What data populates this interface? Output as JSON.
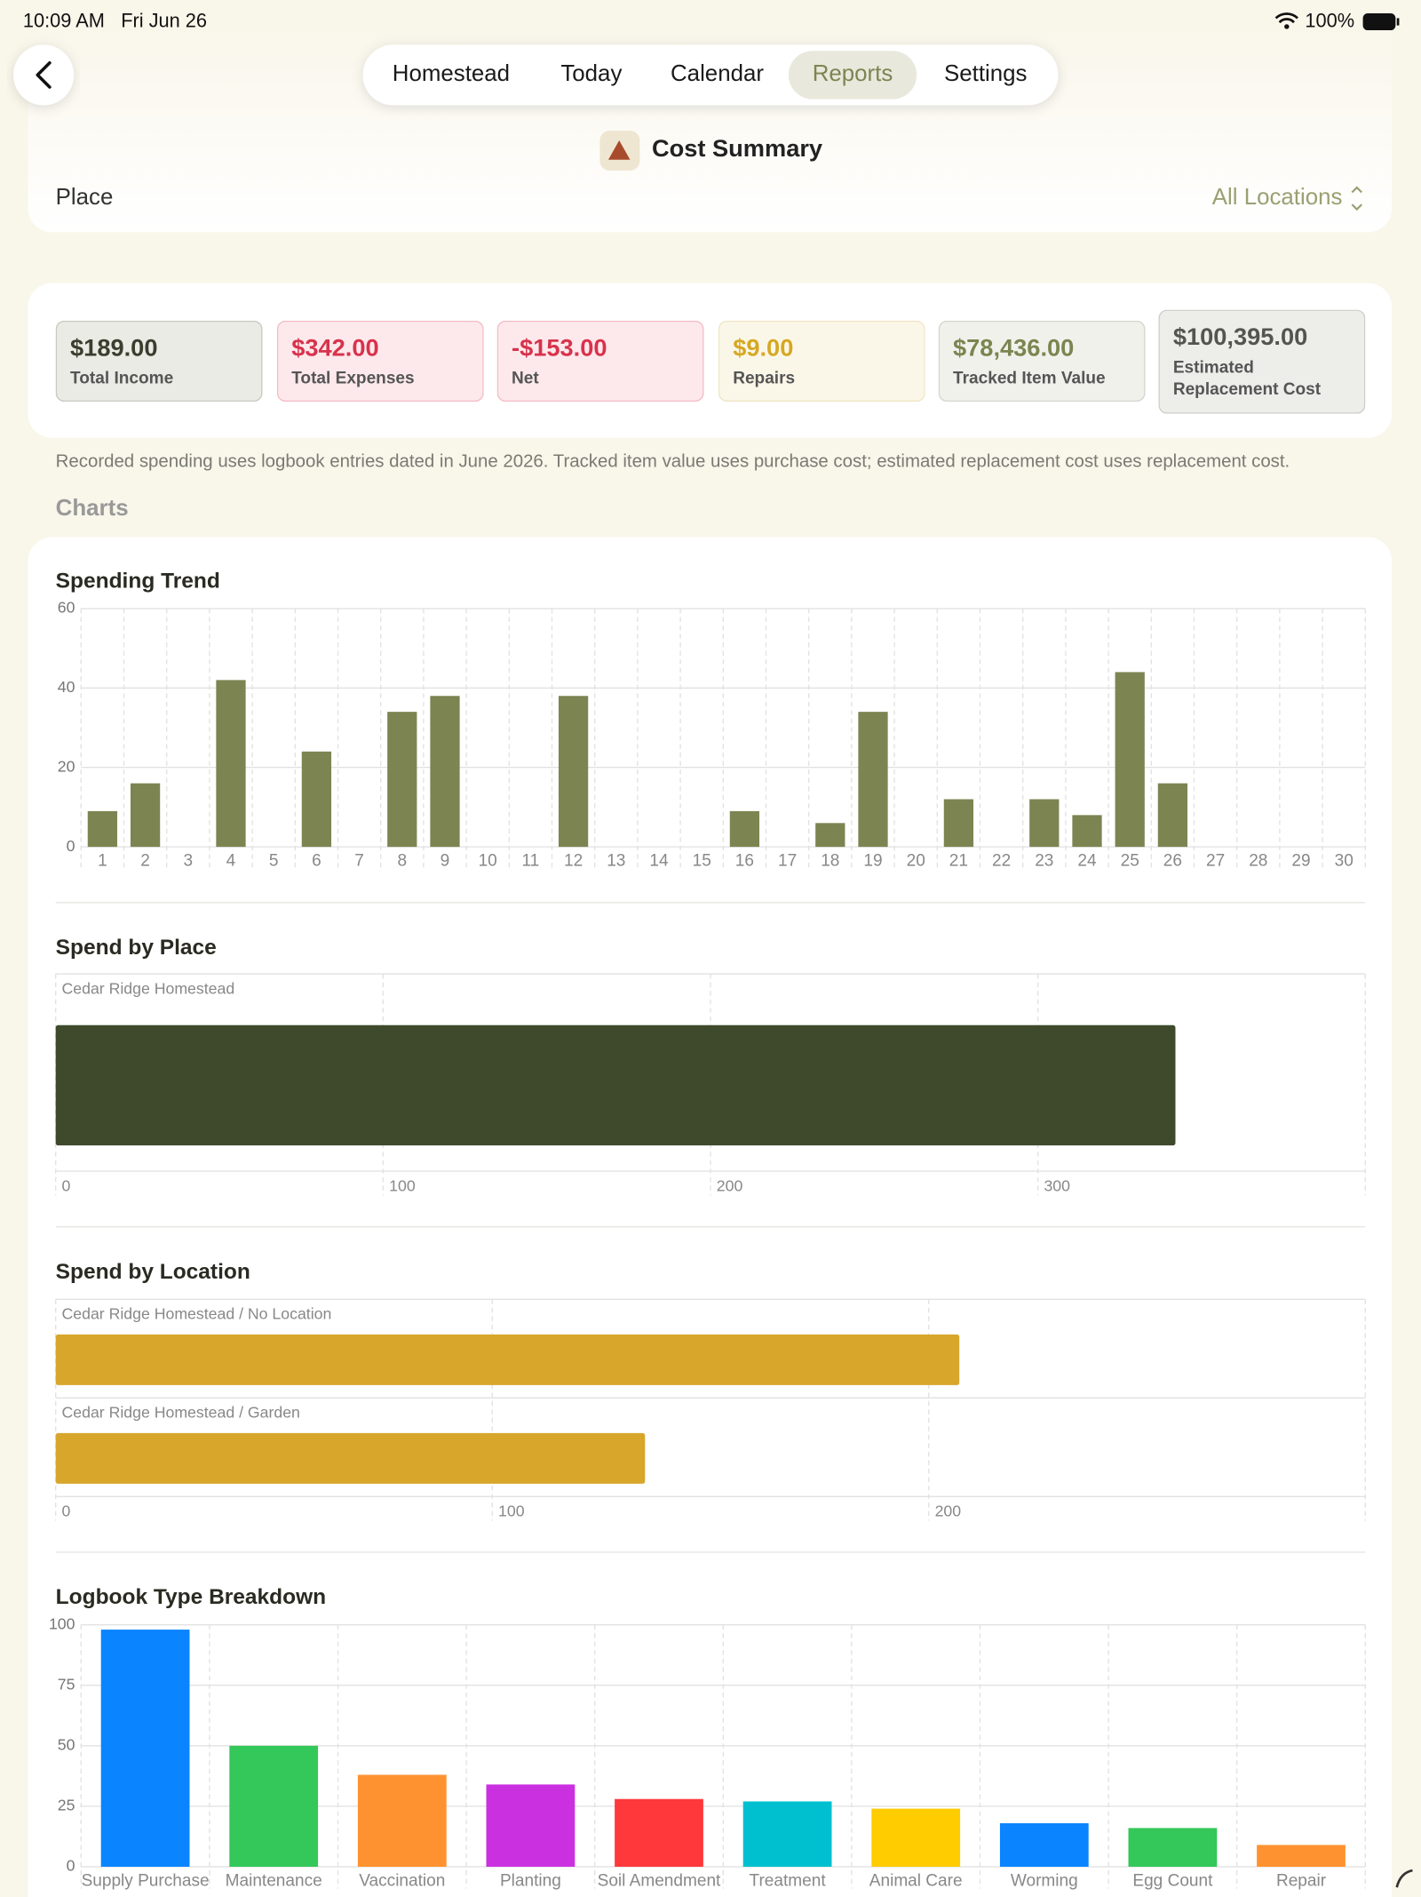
{
  "status_bar": {
    "time": "10:09 AM",
    "date": "Fri Jun 26",
    "battery": "100%"
  },
  "nav": {
    "tabs": [
      "Homestead",
      "Today",
      "Calendar",
      "Reports",
      "Settings"
    ],
    "selected": "Reports"
  },
  "header": {
    "title": "Cost Summary"
  },
  "filter": {
    "label": "Place",
    "value": "All Locations"
  },
  "summary_cards": [
    {
      "value": "$189.00",
      "label": "Total Income",
      "color": "#3b3d2e",
      "bg": "#ebebe5",
      "border": "#c9c9c2"
    },
    {
      "value": "$342.00",
      "label": "Total Expenses",
      "color": "#d8324c",
      "bg": "#fde9ec",
      "border": "#f4bcc5"
    },
    {
      "value": "-$153.00",
      "label": "Net",
      "color": "#d8324c",
      "bg": "#fde9ec",
      "border": "#f4bcc5"
    },
    {
      "value": "$9.00",
      "label": "Repairs",
      "color": "#d6a823",
      "bg": "#fbf7e8",
      "border": "#efe6c4"
    },
    {
      "value": "$78,436.00",
      "label": "Tracked Item Value",
      "color": "#7a8550",
      "bg": "#f1f1ec",
      "border": "#d6d6cf"
    },
    {
      "value": "$100,395.00",
      "label": "Estimated Replacement Cost",
      "color": "#555550",
      "bg": "#ededea",
      "border": "#cfcfca"
    }
  ],
  "note": "Recorded spending uses logbook entries dated in June 2026. Tracked item value uses purchase cost; estimated replacement cost uses replacement cost.",
  "section_title": "Charts",
  "charts": [
    {
      "type": "bar",
      "title": "Spending Trend",
      "categories": [
        "1",
        "2",
        "3",
        "4",
        "5",
        "6",
        "7",
        "8",
        "9",
        "10",
        "11",
        "12",
        "13",
        "14",
        "15",
        "16",
        "17",
        "18",
        "19",
        "20",
        "21",
        "22",
        "23",
        "24",
        "25",
        "26",
        "27",
        "28",
        "29",
        "30"
      ],
      "values": [
        9,
        16,
        0,
        42,
        0,
        24,
        0,
        34,
        38,
        0,
        0,
        38,
        0,
        0,
        0,
        9,
        0,
        6,
        34,
        0,
        12,
        0,
        12,
        8,
        44,
        16,
        0,
        0,
        0,
        0
      ],
      "color": "#7c8552",
      "ylim": [
        0,
        60
      ],
      "yticks": [
        0,
        20,
        40,
        60
      ]
    },
    {
      "type": "hbar",
      "title": "Spend by Place",
      "categories": [
        "Cedar Ridge Homestead"
      ],
      "values": [
        342
      ],
      "color": "#3f4a2c",
      "xlim": [
        0,
        400
      ],
      "xticks": [
        0,
        100,
        200,
        300
      ]
    },
    {
      "type": "hbar",
      "title": "Spend by Location",
      "categories": [
        "Cedar Ridge Homestead / No Location",
        "Cedar Ridge Homestead / Garden"
      ],
      "values": [
        207,
        135
      ],
      "color": "#d7a62b",
      "xlim": [
        0,
        300
      ],
      "xticks": [
        0,
        100,
        200
      ]
    },
    {
      "type": "bar",
      "title": "Logbook Type Breakdown",
      "categories": [
        "Supply Purchase",
        "Maintenance",
        "Vaccination",
        "Planting",
        "Soil Amendment",
        "Treatment",
        "Animal Care",
        "Worming",
        "Egg Count",
        "Repair"
      ],
      "values": [
        98,
        50,
        38,
        34,
        28,
        27,
        24,
        18,
        16,
        9
      ],
      "colors": [
        "#0a84ff",
        "#34c759",
        "#ff9230",
        "#cb30e0",
        "#ff383c",
        "#00c0d0",
        "#ffcc00",
        "#0a84ff",
        "#34c759",
        "#ff9230"
      ],
      "ylim": [
        0,
        100
      ],
      "yticks": [
        0,
        25,
        50,
        75,
        100
      ]
    }
  ]
}
